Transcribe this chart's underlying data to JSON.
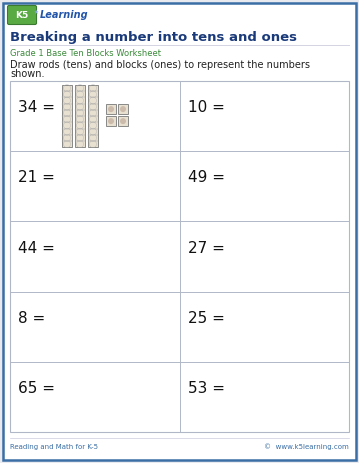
{
  "title": "Breaking a number into tens and ones",
  "subtitle": "Grade 1 Base Ten Blocks Worksheet",
  "instruction_line1": "Draw rods (tens) and blocks (ones) to represent the numbers",
  "instruction_line2": "shown.",
  "footer_left": "Reading and Math for K-5",
  "footer_right": "©  www.k5learning.com",
  "numbers": [
    [
      "34 =",
      "10 ="
    ],
    [
      "21 =",
      "49 ="
    ],
    [
      "44 =",
      "27 ="
    ],
    [
      "8 =",
      "25 ="
    ],
    [
      "65 =",
      "53 ="
    ]
  ],
  "page_bg": "#ffffff",
  "outer_border_color": "#3a6ea5",
  "title_color": "#1a3a7a",
  "subtitle_color": "#3a8a3a",
  "grid_color": "#b0b8c8",
  "cell_text_color": "#111111",
  "footer_color": "#3a6ea5",
  "instruction_color": "#222222",
  "logo_box_bg": "#5aaa44",
  "logo_box_border": "#3a7a30",
  "logo_k5_color": "#ffffff",
  "logo_learning_color": "#2255aa",
  "rod_fill": "#e8e0d0",
  "rod_border": "#888888",
  "rod_seg": "#aaaaaa",
  "unit_fill": "#e8e0d0",
  "unit_border": "#888888",
  "unit_inner": "#ccbbaa"
}
